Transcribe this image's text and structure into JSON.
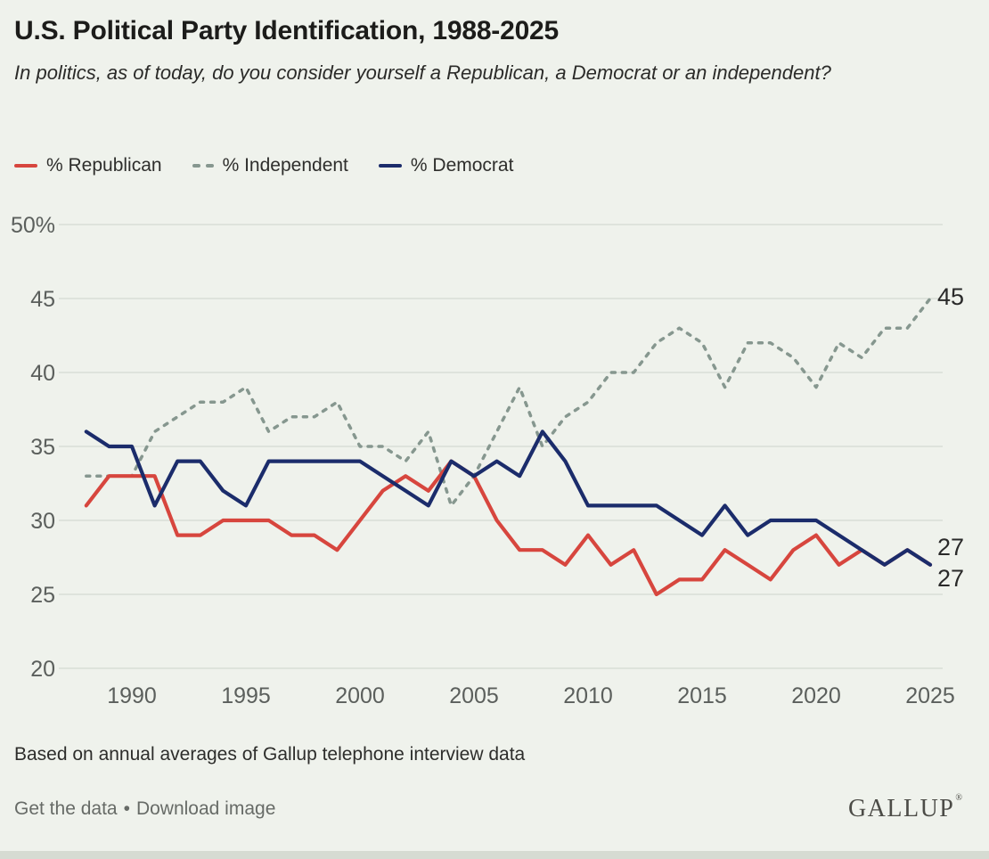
{
  "header": {
    "title": "U.S. Political Party Identification, 1988-2025",
    "subtitle": "In politics, as of today, do you consider yourself a Republican, a Democrat or an independent?"
  },
  "legend": {
    "items": [
      {
        "label": "% Republican",
        "color": "#d7463e",
        "style": "solid"
      },
      {
        "label": "% Independent",
        "color": "#86978f",
        "style": "dashed"
      },
      {
        "label": "% Democrat",
        "color": "#1b2c6b",
        "style": "solid"
      }
    ]
  },
  "chart_data": {
    "type": "line",
    "title": "U.S. Political Party Identification, 1988-2025",
    "x": [
      1988,
      1989,
      1990,
      1991,
      1992,
      1993,
      1994,
      1995,
      1996,
      1997,
      1998,
      1999,
      2000,
      2001,
      2002,
      2003,
      2004,
      2005,
      2006,
      2007,
      2008,
      2009,
      2010,
      2011,
      2012,
      2013,
      2014,
      2015,
      2016,
      2017,
      2018,
      2019,
      2020,
      2021,
      2022,
      2023,
      2024,
      2025
    ],
    "series": [
      {
        "name": "% Independent",
        "color": "#86978f",
        "dash": true,
        "values": [
          33,
          33,
          33,
          36,
          37,
          38,
          38,
          39,
          36,
          37,
          37,
          38,
          35,
          35,
          34,
          36,
          31,
          33,
          36,
          39,
          35,
          37,
          38,
          40,
          40,
          42,
          43,
          42,
          39,
          42,
          42,
          41,
          39,
          42,
          41,
          43,
          43,
          45
        ]
      },
      {
        "name": "% Republican",
        "color": "#d7463e",
        "dash": false,
        "values": [
          31,
          33,
          33,
          33,
          29,
          29,
          30,
          30,
          30,
          29,
          29,
          28,
          30,
          32,
          33,
          32,
          34,
          33,
          30,
          28,
          28,
          27,
          29,
          27,
          28,
          25,
          26,
          26,
          28,
          27,
          26,
          28,
          29,
          27,
          28,
          27,
          28,
          27
        ]
      },
      {
        "name": "% Democrat",
        "color": "#1b2c6b",
        "dash": false,
        "values": [
          36,
          35,
          35,
          31,
          34,
          34,
          32,
          31,
          34,
          34,
          34,
          34,
          34,
          33,
          32,
          31,
          34,
          33,
          34,
          33,
          36,
          34,
          31,
          31,
          31,
          31,
          30,
          29,
          31,
          29,
          30,
          30,
          30,
          29,
          28,
          27,
          28,
          27
        ]
      }
    ],
    "ylim": [
      20,
      50
    ],
    "y_ticks": [
      50,
      45,
      40,
      35,
      30,
      25,
      20
    ],
    "y_tick_labels": [
      "50%",
      "45",
      "40",
      "35",
      "30",
      "25",
      "20"
    ],
    "x_ticks": [
      1990,
      1995,
      2000,
      2005,
      2010,
      2015,
      2020,
      2025
    ],
    "grid": "horizontal",
    "legend_position": "top",
    "end_labels": [
      {
        "series": "% Independent",
        "value": "45"
      },
      {
        "series": "% Democrat",
        "value": "27"
      },
      {
        "series": "% Republican",
        "value": "27"
      }
    ]
  },
  "footer": {
    "note": "Based on annual averages of Gallup telephone interview data",
    "get_data_link": "Get the data",
    "separator": "•",
    "download_link": "Download image",
    "brand": "GALLUP",
    "brand_mark": "®"
  }
}
